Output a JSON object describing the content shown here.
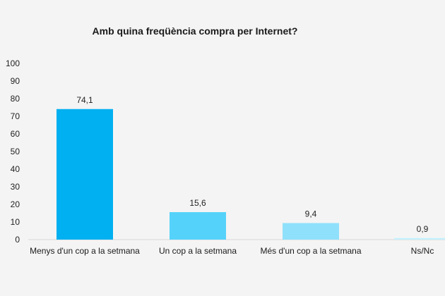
{
  "chart_data": {
    "type": "bar",
    "title": "Amb quina freqüència compra per Internet?",
    "categories": [
      "Menys d'un cop a la setmana",
      "Un cop a la setmana",
      "Més d'un cop a la setmana",
      "Ns/Nc"
    ],
    "values": [
      74.1,
      15.6,
      9.4,
      0.9
    ],
    "value_labels": [
      "74,1",
      "15,6",
      "9,4",
      "0,9"
    ],
    "bar_colors": [
      "#00b0f0",
      "#55d2fa",
      "#8fe0fb",
      "#c4effd"
    ],
    "ylim": [
      0,
      100
    ],
    "yticks": [
      0,
      10,
      20,
      30,
      40,
      50,
      60,
      70,
      80,
      90,
      100
    ],
    "grid": false,
    "legend": "none",
    "xlabel": "",
    "ylabel": ""
  }
}
